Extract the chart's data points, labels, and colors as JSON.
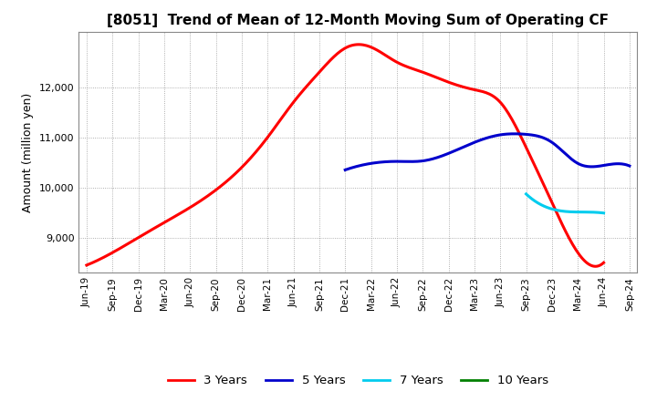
{
  "title": "[8051]  Trend of Mean of 12-Month Moving Sum of Operating CF",
  "ylabel": "Amount (million yen)",
  "background_color": "#ffffff",
  "grid_color": "#aaaaaa",
  "x_labels": [
    "Jun-19",
    "Sep-19",
    "Dec-19",
    "Mar-20",
    "Jun-20",
    "Sep-20",
    "Dec-20",
    "Mar-21",
    "Jun-21",
    "Sep-21",
    "Dec-21",
    "Mar-22",
    "Jun-22",
    "Sep-22",
    "Dec-22",
    "Mar-23",
    "Jun-23",
    "Sep-23",
    "Dec-23",
    "Mar-24",
    "Jun-24",
    "Sep-24"
  ],
  "ylim": [
    8300,
    13100
  ],
  "yticks": [
    9000,
    10000,
    11000,
    12000
  ],
  "series": {
    "3years": {
      "color": "#ff0000",
      "linewidth": 2.2,
      "label": "3 Years",
      "values": [
        8450,
        8700,
        9000,
        9300,
        9600,
        9950,
        10400,
        11000,
        11700,
        12300,
        12780,
        12800,
        12500,
        12300,
        12100,
        11950,
        11700,
        10800,
        9700,
        8700,
        8500,
        null
      ]
    },
    "5years": {
      "color": "#0000cc",
      "linewidth": 2.2,
      "label": "5 Years",
      "values": [
        null,
        null,
        null,
        null,
        null,
        null,
        null,
        null,
        null,
        null,
        10350,
        10480,
        10520,
        10530,
        10680,
        10900,
        11050,
        11060,
        10900,
        10480,
        10440,
        10430
      ]
    },
    "7years": {
      "color": "#00ccee",
      "linewidth": 2.2,
      "label": "7 Years",
      "values": [
        null,
        null,
        null,
        null,
        null,
        null,
        null,
        null,
        null,
        null,
        null,
        null,
        null,
        null,
        null,
        null,
        null,
        9870,
        9570,
        9510,
        9490,
        null
      ]
    },
    "10years": {
      "color": "#008000",
      "linewidth": 2.2,
      "label": "10 Years",
      "values": [
        null,
        null,
        null,
        null,
        null,
        null,
        null,
        null,
        null,
        null,
        null,
        null,
        null,
        null,
        null,
        null,
        null,
        null,
        null,
        null,
        null,
        null
      ]
    }
  }
}
